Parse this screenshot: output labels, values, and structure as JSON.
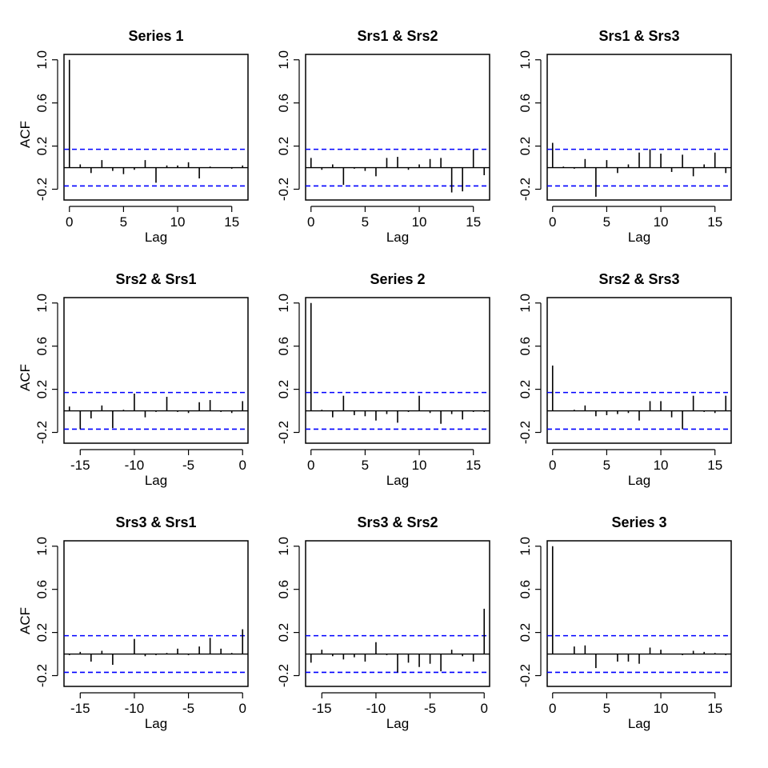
{
  "chart_data": [
    {
      "type": "bar",
      "title": "Series  1",
      "xlabel": "Lag",
      "ylabel": "ACF",
      "xlim": [
        -0.5,
        16.5
      ],
      "ylim": [
        -0.3,
        1.05
      ],
      "xticks": [
        "0",
        "5",
        "10",
        "15"
      ],
      "yticks": [
        "-0.2",
        "0.2",
        "0.6",
        "1.0"
      ],
      "ci": 0.17,
      "x": [
        0,
        1,
        2,
        3,
        4,
        5,
        6,
        7,
        8,
        9,
        10,
        11,
        12,
        13,
        14,
        15,
        16
      ],
      "values": [
        1.0,
        0.03,
        -0.05,
        0.07,
        -0.03,
        -0.06,
        -0.02,
        0.07,
        -0.14,
        0.02,
        0.02,
        0.05,
        -0.1,
        0.01,
        0.0,
        -0.01,
        0.02
      ]
    },
    {
      "type": "bar",
      "title": "Srs1 & Srs2",
      "xlabel": "Lag",
      "ylabel": "",
      "xlim": [
        -0.5,
        16.5
      ],
      "ylim": [
        -0.3,
        1.05
      ],
      "xticks": [
        "0",
        "5",
        "10",
        "15"
      ],
      "yticks": [
        "-0.2",
        "0.2",
        "0.6",
        "1.0"
      ],
      "ci": 0.17,
      "x": [
        0,
        1,
        2,
        3,
        4,
        5,
        6,
        7,
        8,
        9,
        10,
        11,
        12,
        13,
        14,
        15,
        16
      ],
      "values": [
        0.09,
        -0.02,
        0.03,
        -0.16,
        -0.01,
        -0.03,
        -0.08,
        0.09,
        0.1,
        -0.02,
        0.03,
        0.08,
        0.09,
        -0.23,
        -0.22,
        0.17,
        -0.07
      ]
    },
    {
      "type": "bar",
      "title": "Srs1 & Srs3",
      "xlabel": "Lag",
      "ylabel": "",
      "xlim": [
        -0.5,
        16.5
      ],
      "ylim": [
        -0.3,
        1.05
      ],
      "xticks": [
        "0",
        "5",
        "10",
        "15"
      ],
      "yticks": [
        "-0.2",
        "0.2",
        "0.6",
        "1.0"
      ],
      "ci": 0.17,
      "x": [
        0,
        1,
        2,
        3,
        4,
        5,
        6,
        7,
        8,
        9,
        10,
        11,
        12,
        13,
        14,
        15,
        16
      ],
      "values": [
        0.23,
        0.01,
        -0.01,
        0.08,
        -0.27,
        0.07,
        -0.05,
        0.03,
        0.14,
        0.17,
        0.13,
        -0.04,
        0.12,
        -0.08,
        0.03,
        0.14,
        -0.05
      ]
    },
    {
      "type": "bar",
      "title": "Srs2 & Srs1",
      "xlabel": "Lag",
      "ylabel": "ACF",
      "xlim": [
        -16.5,
        0.5
      ],
      "ylim": [
        -0.3,
        1.05
      ],
      "xticks": [
        "-15",
        "-10",
        "-5",
        "0"
      ],
      "yticks": [
        "-0.2",
        "0.2",
        "0.6",
        "1.0"
      ],
      "ci": 0.17,
      "x": [
        -16,
        -15,
        -14,
        -13,
        -12,
        -11,
        -10,
        -9,
        -8,
        -7,
        -6,
        -5,
        -4,
        -3,
        -2,
        -1,
        0
      ],
      "values": [
        0.04,
        -0.17,
        -0.07,
        0.05,
        -0.16,
        0.01,
        0.16,
        -0.06,
        -0.01,
        0.13,
        -0.01,
        -0.02,
        0.08,
        0.1,
        -0.01,
        -0.02,
        0.09
      ]
    },
    {
      "type": "bar",
      "title": "Series  2",
      "xlabel": "Lag",
      "ylabel": "",
      "xlim": [
        -0.5,
        16.5
      ],
      "ylim": [
        -0.3,
        1.05
      ],
      "xticks": [
        "0",
        "5",
        "10",
        "15"
      ],
      "yticks": [
        "-0.2",
        "0.2",
        "0.6",
        "1.0"
      ],
      "ci": 0.17,
      "x": [
        0,
        1,
        2,
        3,
        4,
        5,
        6,
        7,
        8,
        9,
        10,
        11,
        12,
        13,
        14,
        15,
        16
      ],
      "values": [
        1.0,
        0.01,
        -0.06,
        0.14,
        -0.04,
        -0.05,
        -0.09,
        -0.03,
        -0.11,
        -0.01,
        0.14,
        -0.02,
        -0.12,
        -0.03,
        -0.08,
        -0.01,
        -0.01
      ]
    },
    {
      "type": "bar",
      "title": "Srs2 & Srs3",
      "xlabel": "Lag",
      "ylabel": "",
      "xlim": [
        -0.5,
        16.5
      ],
      "ylim": [
        -0.3,
        1.05
      ],
      "xticks": [
        "0",
        "5",
        "10",
        "15"
      ],
      "yticks": [
        "-0.2",
        "0.2",
        "0.6",
        "1.0"
      ],
      "ci": 0.17,
      "x": [
        0,
        1,
        2,
        3,
        4,
        5,
        6,
        7,
        8,
        9,
        10,
        11,
        12,
        13,
        14,
        15,
        16
      ],
      "values": [
        0.42,
        0.0,
        0.01,
        0.05,
        -0.05,
        -0.04,
        -0.03,
        -0.02,
        -0.09,
        0.09,
        0.09,
        -0.06,
        -0.17,
        0.14,
        -0.01,
        -0.02,
        0.14
      ]
    },
    {
      "type": "bar",
      "title": "Srs3 & Srs1",
      "xlabel": "Lag",
      "ylabel": "ACF",
      "xlim": [
        -16.5,
        0.5
      ],
      "ylim": [
        -0.3,
        1.05
      ],
      "xticks": [
        "-15",
        "-10",
        "-5",
        "0"
      ],
      "yticks": [
        "-0.2",
        "0.2",
        "0.6",
        "1.0"
      ],
      "ci": 0.17,
      "x": [
        -16,
        -15,
        -14,
        -13,
        -12,
        -11,
        -10,
        -9,
        -8,
        -7,
        -6,
        -5,
        -4,
        -3,
        -2,
        -1,
        0
      ],
      "values": [
        -0.01,
        0.02,
        -0.07,
        0.03,
        -0.1,
        0.0,
        0.14,
        -0.02,
        -0.01,
        0.01,
        0.05,
        -0.01,
        0.07,
        0.15,
        0.05,
        0.01,
        0.23
      ]
    },
    {
      "type": "bar",
      "title": "Srs3 & Srs2",
      "xlabel": "Lag",
      "ylabel": "",
      "xlim": [
        -16.5,
        0.5
      ],
      "ylim": [
        -0.3,
        1.05
      ],
      "xticks": [
        "-15",
        "-10",
        "-5",
        "0"
      ],
      "yticks": [
        "-0.2",
        "0.2",
        "0.6",
        "1.0"
      ],
      "ci": 0.17,
      "x": [
        -16,
        -15,
        -14,
        -13,
        -12,
        -11,
        -10,
        -9,
        -8,
        -7,
        -6,
        -5,
        -4,
        -3,
        -2,
        -1,
        0
      ],
      "values": [
        -0.08,
        0.04,
        -0.02,
        -0.05,
        -0.03,
        -0.07,
        0.11,
        -0.01,
        -0.17,
        -0.08,
        -0.12,
        -0.09,
        -0.16,
        0.04,
        -0.02,
        -0.07,
        0.42
      ]
    },
    {
      "type": "bar",
      "title": "Series  3",
      "xlabel": "Lag",
      "ylabel": "",
      "xlim": [
        -0.5,
        16.5
      ],
      "ylim": [
        -0.3,
        1.05
      ],
      "xticks": [
        "0",
        "5",
        "10",
        "15"
      ],
      "yticks": [
        "-0.2",
        "0.2",
        "0.6",
        "1.0"
      ],
      "ci": 0.17,
      "x": [
        0,
        1,
        2,
        3,
        4,
        5,
        6,
        7,
        8,
        9,
        10,
        11,
        12,
        13,
        14,
        15,
        16
      ],
      "values": [
        1.0,
        0.0,
        0.07,
        0.08,
        -0.13,
        0.0,
        -0.07,
        -0.07,
        -0.09,
        0.06,
        0.04,
        0.0,
        -0.01,
        0.03,
        0.02,
        0.01,
        -0.01
      ]
    }
  ],
  "colors": {
    "ci_line": "#0000FF",
    "spike": "#000000"
  }
}
